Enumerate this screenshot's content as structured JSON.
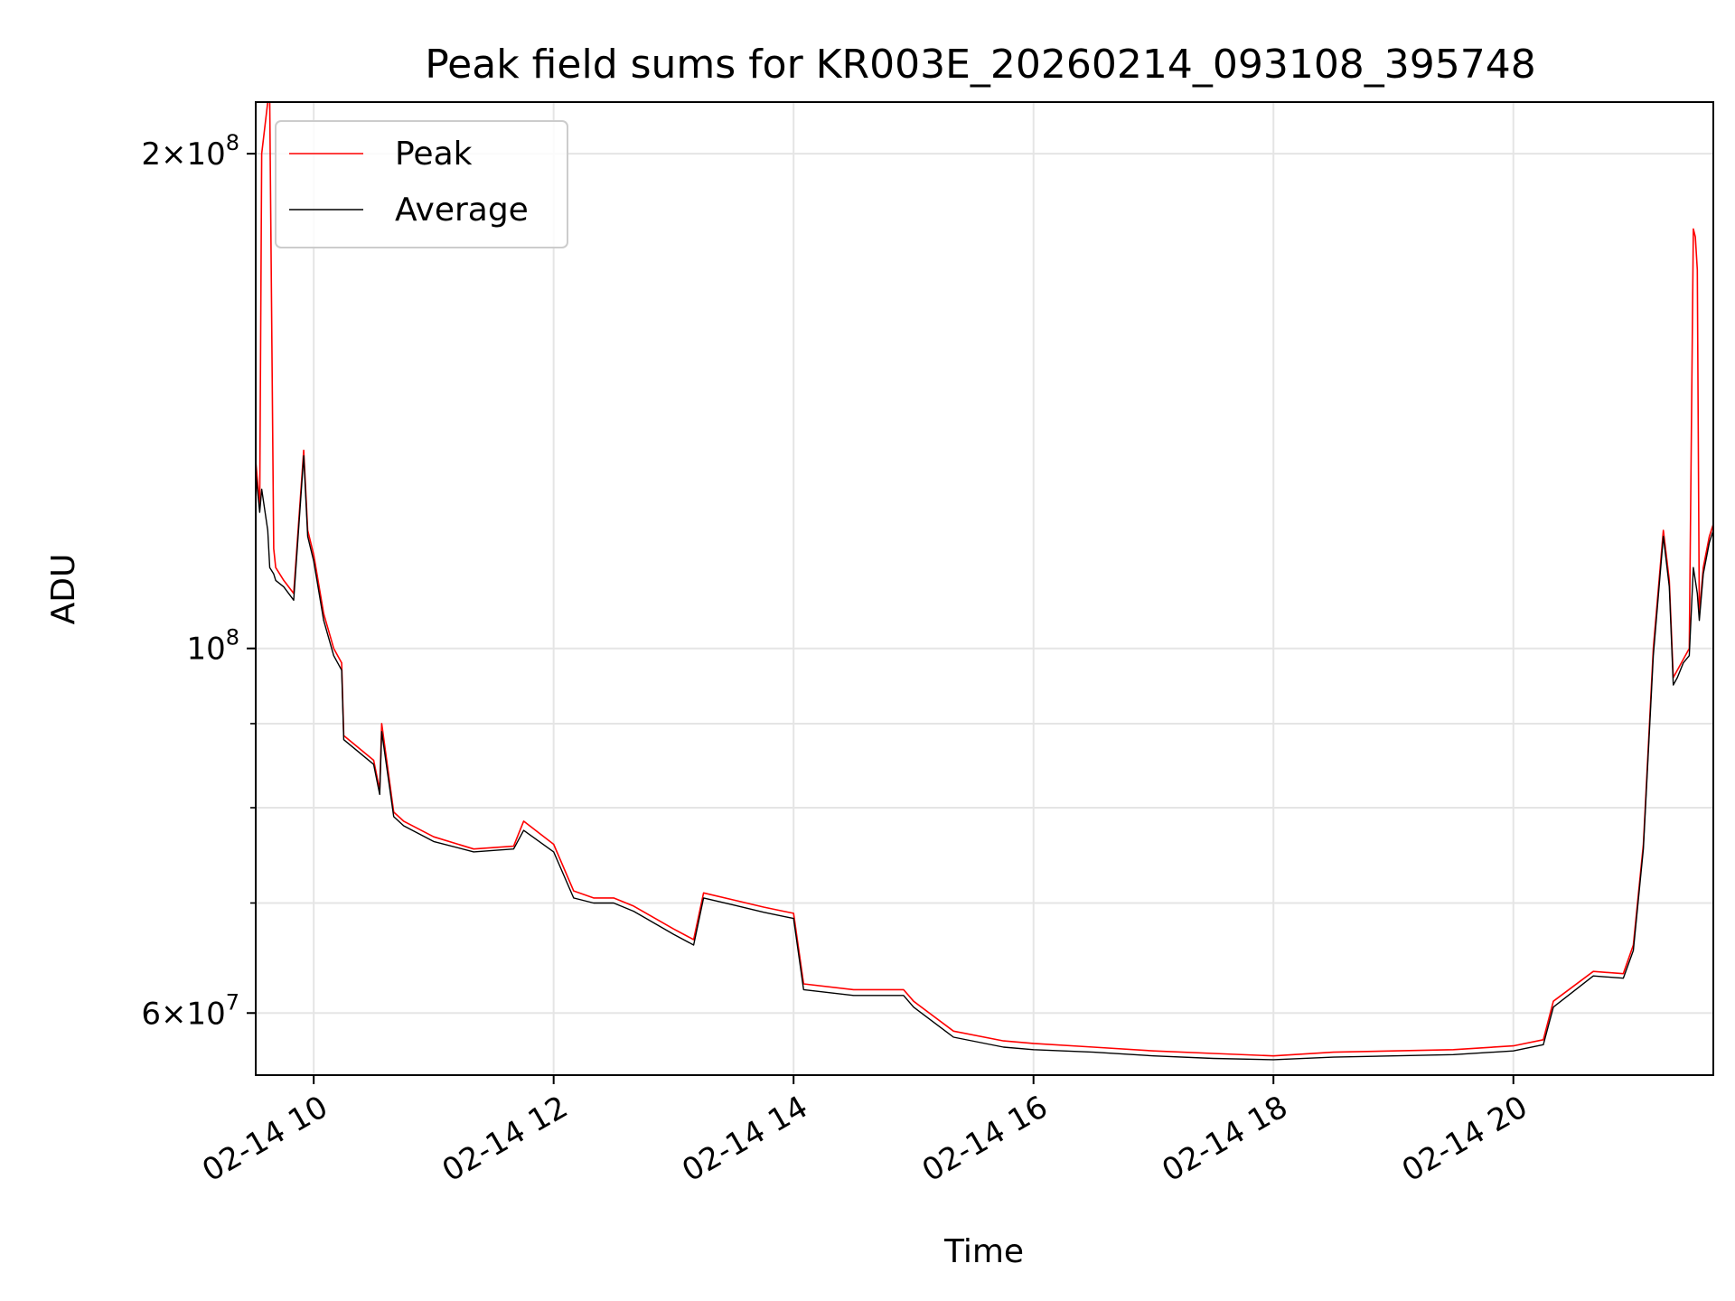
{
  "chart_data": {
    "type": "line",
    "title": "Peak field sums for KR003E_20260214_093108_395748",
    "xlabel": "Time",
    "ylabel": "ADU",
    "yscale": "log",
    "xlim": [
      "2026-02-14 09:31",
      "2026-02-14 21:40"
    ],
    "ylim": [
      55000000,
      215000000
    ],
    "grid": true,
    "legend": "upper-left",
    "x_ticks": [
      "02-14 10",
      "02-14 12",
      "02-14 14",
      "02-14 16",
      "02-14 18",
      "02-14 20"
    ],
    "y_ticks": [
      {
        "value": 200000000,
        "mantissa": "2",
        "base": "10",
        "exp": "8"
      },
      {
        "value": 100000000,
        "mantissa": "",
        "base": "10",
        "exp": "8"
      },
      {
        "value": 60000000,
        "mantissa": "6",
        "base": "10",
        "exp": "7"
      }
    ],
    "series": [
      {
        "name": "Peak",
        "color": "#ff0000",
        "x": [
          "2026-02-14 09:31",
          "2026-02-14 09:33",
          "2026-02-14 09:34",
          "2026-02-14 09:37",
          "2026-02-14 09:38",
          "2026-02-14 09:40",
          "2026-02-14 09:41",
          "2026-02-14 09:45",
          "2026-02-14 09:50",
          "2026-02-14 09:55",
          "2026-02-14 09:57",
          "2026-02-14 10:00",
          "2026-02-14 10:05",
          "2026-02-14 10:10",
          "2026-02-14 10:14",
          "2026-02-14 10:15",
          "2026-02-14 10:30",
          "2026-02-14 10:33",
          "2026-02-14 10:34",
          "2026-02-14 10:40",
          "2026-02-14 10:45",
          "2026-02-14 11:00",
          "2026-02-14 11:20",
          "2026-02-14 11:40",
          "2026-02-14 11:45",
          "2026-02-14 12:00",
          "2026-02-14 12:10",
          "2026-02-14 12:20",
          "2026-02-14 12:30",
          "2026-02-14 12:40",
          "2026-02-14 13:00",
          "2026-02-14 13:10",
          "2026-02-14 13:15",
          "2026-02-14 13:30",
          "2026-02-14 13:45",
          "2026-02-14 13:55",
          "2026-02-14 14:00",
          "2026-02-14 14:05",
          "2026-02-14 14:30",
          "2026-02-14 14:55",
          "2026-02-14 15:00",
          "2026-02-14 15:20",
          "2026-02-14 15:45",
          "2026-02-14 16:00",
          "2026-02-14 16:30",
          "2026-02-14 17:00",
          "2026-02-14 17:30",
          "2026-02-14 18:00",
          "2026-02-14 18:30",
          "2026-02-14 19:00",
          "2026-02-14 19:30",
          "2026-02-14 20:00",
          "2026-02-14 20:15",
          "2026-02-14 20:20",
          "2026-02-14 20:40",
          "2026-02-14 20:55",
          "2026-02-14 21:00",
          "2026-02-14 21:05",
          "2026-02-14 21:10",
          "2026-02-14 21:15",
          "2026-02-14 21:18",
          "2026-02-14 21:20",
          "2026-02-14 21:22",
          "2026-02-14 21:25",
          "2026-02-14 21:28",
          "2026-02-14 21:30",
          "2026-02-14 21:31",
          "2026-02-14 21:32",
          "2026-02-14 21:33",
          "2026-02-14 21:35",
          "2026-02-14 21:38",
          "2026-02-14 21:40"
        ],
        "values": [
          130000000,
          122000000,
          200000000,
          215000000,
          215000000,
          115000000,
          112000000,
          110000000,
          108000000,
          132000000,
          118000000,
          114000000,
          105000000,
          100000000,
          98000000,
          88500000,
          85500000,
          82000000,
          90000000,
          79500000,
          78500000,
          76800000,
          75500000,
          75800000,
          78500000,
          76000000,
          71200000,
          70500000,
          70500000,
          69700000,
          67500000,
          66500000,
          71000000,
          70300000,
          69600000,
          69200000,
          69000000,
          62500000,
          62000000,
          62000000,
          61000000,
          58500000,
          57700000,
          57500000,
          57200000,
          56900000,
          56700000,
          56500000,
          56800000,
          56900000,
          57000000,
          57300000,
          57800000,
          61000000,
          63600000,
          63400000,
          66000000,
          76000000,
          100000000,
          118000000,
          110000000,
          96000000,
          97000000,
          98500000,
          100000000,
          180000000,
          178000000,
          170000000,
          105000000,
          112000000,
          117000000,
          119000000
        ]
      },
      {
        "name": "Average",
        "color": "#000000",
        "x": [
          "2026-02-14 09:31",
          "2026-02-14 09:33",
          "2026-02-14 09:34",
          "2026-02-14 09:37",
          "2026-02-14 09:38",
          "2026-02-14 09:40",
          "2026-02-14 09:41",
          "2026-02-14 09:45",
          "2026-02-14 09:50",
          "2026-02-14 09:55",
          "2026-02-14 09:57",
          "2026-02-14 10:00",
          "2026-02-14 10:05",
          "2026-02-14 10:10",
          "2026-02-14 10:14",
          "2026-02-14 10:15",
          "2026-02-14 10:30",
          "2026-02-14 10:33",
          "2026-02-14 10:34",
          "2026-02-14 10:40",
          "2026-02-14 10:45",
          "2026-02-14 11:00",
          "2026-02-14 11:20",
          "2026-02-14 11:40",
          "2026-02-14 11:45",
          "2026-02-14 12:00",
          "2026-02-14 12:10",
          "2026-02-14 12:20",
          "2026-02-14 12:30",
          "2026-02-14 12:40",
          "2026-02-14 13:00",
          "2026-02-14 13:10",
          "2026-02-14 13:15",
          "2026-02-14 13:30",
          "2026-02-14 13:45",
          "2026-02-14 13:55",
          "2026-02-14 14:00",
          "2026-02-14 14:05",
          "2026-02-14 14:30",
          "2026-02-14 14:55",
          "2026-02-14 15:00",
          "2026-02-14 15:20",
          "2026-02-14 15:45",
          "2026-02-14 16:00",
          "2026-02-14 16:30",
          "2026-02-14 17:00",
          "2026-02-14 17:30",
          "2026-02-14 18:00",
          "2026-02-14 18:30",
          "2026-02-14 19:00",
          "2026-02-14 19:30",
          "2026-02-14 20:00",
          "2026-02-14 20:15",
          "2026-02-14 20:20",
          "2026-02-14 20:40",
          "2026-02-14 20:55",
          "2026-02-14 21:00",
          "2026-02-14 21:05",
          "2026-02-14 21:10",
          "2026-02-14 21:15",
          "2026-02-14 21:18",
          "2026-02-14 21:20",
          "2026-02-14 21:22",
          "2026-02-14 21:25",
          "2026-02-14 21:28",
          "2026-02-14 21:30",
          "2026-02-14 21:31",
          "2026-02-14 21:32",
          "2026-02-14 21:33",
          "2026-02-14 21:35",
          "2026-02-14 21:38",
          "2026-02-14 21:40"
        ],
        "values": [
          128000000,
          121000000,
          125000000,
          118000000,
          112000000,
          111000000,
          110000000,
          109000000,
          107000000,
          131000000,
          117000000,
          113000000,
          104000000,
          99000000,
          97000000,
          88000000,
          85000000,
          81500000,
          89000000,
          79000000,
          78000000,
          76300000,
          75200000,
          75500000,
          77500000,
          75200000,
          70500000,
          70000000,
          70000000,
          69200000,
          67000000,
          66000000,
          70500000,
          69800000,
          69100000,
          68700000,
          68500000,
          62000000,
          61500000,
          61500000,
          60500000,
          58000000,
          57200000,
          57000000,
          56800000,
          56500000,
          56300000,
          56200000,
          56400000,
          56500000,
          56600000,
          56900000,
          57400000,
          60500000,
          63200000,
          63000000,
          65500000,
          75500000,
          99000000,
          117000000,
          109000000,
          95000000,
          96000000,
          98000000,
          99000000,
          112000000,
          110000000,
          108000000,
          104000000,
          111000000,
          116000000,
          118000000
        ]
      }
    ]
  }
}
